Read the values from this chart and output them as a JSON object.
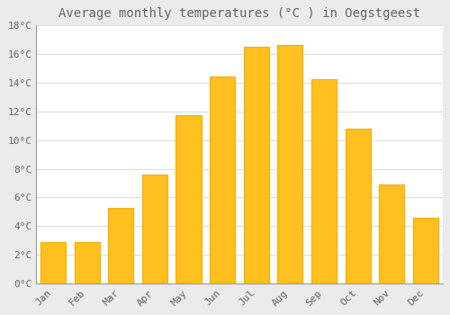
{
  "title": "Average monthly temperatures (°C ) in Oegstgeest",
  "months": [
    "Jan",
    "Feb",
    "Mar",
    "Apr",
    "May",
    "Jun",
    "Jul",
    "Aug",
    "Sep",
    "Oct",
    "Nov",
    "Dec"
  ],
  "values": [
    2.9,
    2.9,
    5.3,
    7.6,
    11.7,
    14.4,
    16.5,
    16.6,
    14.2,
    10.8,
    6.9,
    4.6
  ],
  "bar_color": "#FFC020",
  "bar_edge_color": "#FFAA00",
  "background_color": "#EBEBEB",
  "plot_bg_color": "#FFFFFF",
  "grid_color": "#DDDDDD",
  "text_color": "#666666",
  "ylim": [
    0,
    18
  ],
  "yticks": [
    0,
    2,
    4,
    6,
    8,
    10,
    12,
    14,
    16,
    18
  ],
  "ytick_labels": [
    "0°C",
    "2°C",
    "4°C",
    "6°C",
    "8°C",
    "10°C",
    "12°C",
    "14°C",
    "16°C",
    "18°C"
  ],
  "title_fontsize": 10,
  "tick_fontsize": 8,
  "font_family": "monospace",
  "bar_width": 0.75
}
